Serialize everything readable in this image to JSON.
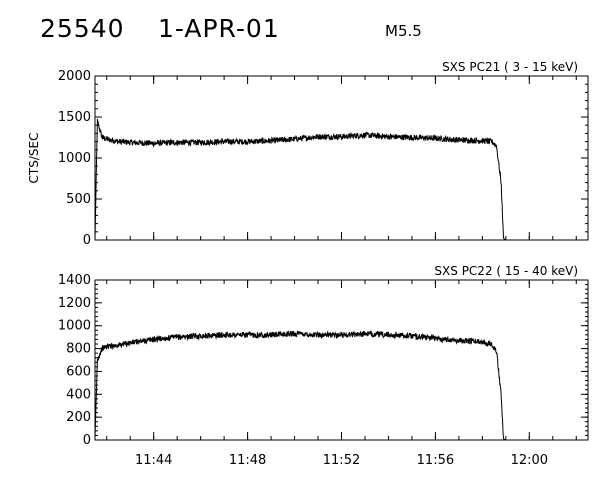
{
  "header": {
    "event_id": "25540",
    "date": "1-APR-01",
    "flare_class": "M5.5"
  },
  "chart_data": [
    {
      "type": "line",
      "title": "SXS PC21  (  3 - 15 keV)",
      "ylabel": "CTS/SEC",
      "xlabel": "",
      "xlim": [
        "11:41:30",
        "12:02:30"
      ],
      "ylim": [
        0,
        2000
      ],
      "yticks": [
        0,
        500,
        1000,
        1500,
        2000
      ],
      "xticks": [
        "11:44",
        "11:48",
        "11:52",
        "11:56",
        "12:00"
      ],
      "series": [
        {
          "x": [
            "11:41:30",
            "11:41:36",
            "11:41:48",
            "11:42:00",
            "11:42:30",
            "11:43:00",
            "11:44:00",
            "11:45:00",
            "11:46:00",
            "11:47:00",
            "11:48:00",
            "11:49:00",
            "11:50:00",
            "11:51:00",
            "11:52:00",
            "11:53:00",
            "11:54:00",
            "11:55:00",
            "11:56:00",
            "11:57:00",
            "11:58:00",
            "11:58:24",
            "11:58:36",
            "11:58:48",
            "11:58:54",
            "11:59:00",
            "11:59:30"
          ],
          "y": [
            0,
            1450,
            1250,
            1230,
            1200,
            1190,
            1180,
            1190,
            1190,
            1200,
            1200,
            1210,
            1230,
            1260,
            1260,
            1280,
            1260,
            1250,
            1240,
            1220,
            1210,
            1200,
            1150,
            700,
            20,
            0,
            0
          ]
        }
      ]
    },
    {
      "type": "line",
      "title": "SXS PC22  ( 15 - 40 keV)",
      "ylabel": "",
      "xlabel": "",
      "xlim": [
        "11:41:30",
        "12:02:30"
      ],
      "ylim": [
        0,
        1400
      ],
      "yticks": [
        0,
        200,
        400,
        600,
        800,
        1000,
        1200,
        1400
      ],
      "xticks": [
        "11:44",
        "11:48",
        "11:52",
        "11:56",
        "12:00"
      ],
      "series": [
        {
          "x": [
            "11:41:30",
            "11:41:36",
            "11:41:48",
            "11:42:00",
            "11:42:30",
            "11:43:00",
            "11:44:00",
            "11:45:00",
            "11:46:00",
            "11:47:00",
            "11:48:00",
            "11:49:00",
            "11:50:00",
            "11:51:00",
            "11:52:00",
            "11:53:00",
            "11:54:00",
            "11:55:00",
            "11:56:00",
            "11:57:00",
            "11:58:00",
            "11:58:24",
            "11:58:36",
            "11:58:48",
            "11:58:54",
            "11:59:00",
            "11:59:30"
          ],
          "y": [
            0,
            700,
            800,
            820,
            830,
            850,
            880,
            900,
            910,
            920,
            920,
            920,
            930,
            920,
            920,
            930,
            920,
            910,
            890,
            870,
            860,
            840,
            780,
            400,
            10,
            0,
            0
          ]
        }
      ]
    }
  ]
}
